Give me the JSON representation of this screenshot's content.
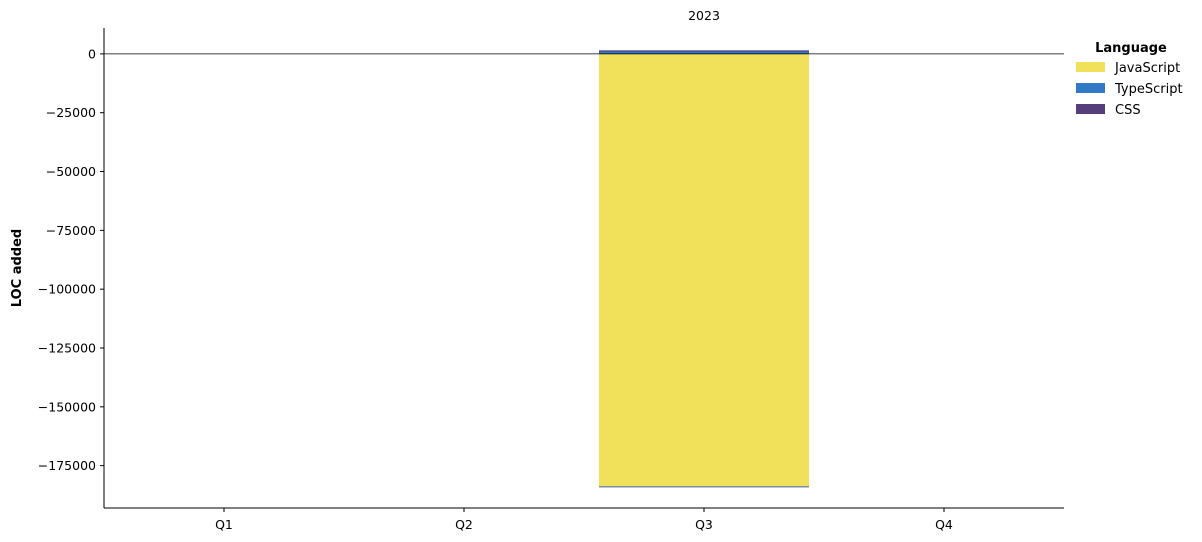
{
  "chart_data": {
    "type": "bar",
    "stacked": true,
    "title": "2023",
    "xlabel": "",
    "ylabel": "LOC added",
    "categories": [
      "Q1",
      "Q2",
      "Q3",
      "Q4"
    ],
    "ylim": [
      -193000,
      11000
    ],
    "yticks": [
      0,
      -25000,
      -50000,
      -75000,
      -100000,
      -125000,
      -150000,
      -175000
    ],
    "ytick_labels": [
      "0",
      "−25000",
      "−50000",
      "−75000",
      "−100000",
      "−125000",
      "−150000",
      "−175000"
    ],
    "zero_line": true,
    "grid": false,
    "legend": {
      "title": "Language",
      "placement": "top-right-outside"
    },
    "series": [
      {
        "name": "JavaScript",
        "color": "#f0e05a",
        "values": [
          0,
          0,
          -184000,
          0
        ]
      },
      {
        "name": "TypeScript",
        "color": "#3178c6",
        "values": [
          0,
          0,
          1200,
          0
        ]
      },
      {
        "name": "CSS",
        "color": "#563d7c",
        "values": [
          0,
          0,
          300,
          0
        ]
      }
    ]
  }
}
